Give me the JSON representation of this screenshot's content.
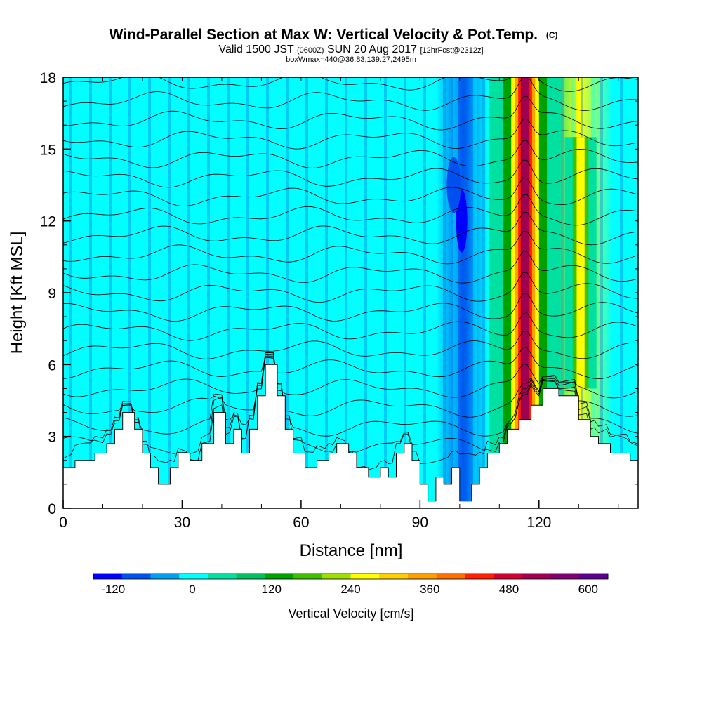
{
  "chart_data": {
    "type": "heatmap",
    "title": "Wind-Parallel Section at Max W: Vertical Velocity & Pot.Temp.",
    "title_copyright": "(C)",
    "subtitle_parts": {
      "valid": "Valid 1500 JST",
      "utc": "(0600Z)",
      "date": "SUN 20 Aug 2017",
      "forecast": "[12hrFcst@2312z]"
    },
    "subtitle2": "boxWmax=440@36.83,139.27,2495m",
    "xlabel": "Distance [nm]",
    "ylabel": "Height [Kft MSL]",
    "xlim": [
      0,
      145
    ],
    "ylim": [
      0,
      18
    ],
    "xticks": [
      "0",
      "30",
      "60",
      "90",
      "120"
    ],
    "yticks": [
      "0",
      "3",
      "6",
      "9",
      "12",
      "15",
      "18"
    ],
    "background_value": -15,
    "background_levels": [
      {
        "x_range": [
          0,
          12
        ],
        "value": -10
      },
      {
        "x_range": [
          12,
          23
        ],
        "value": 10
      },
      {
        "x_range": [
          23,
          33
        ],
        "value": -8
      },
      {
        "x_range": [
          33,
          42
        ],
        "value": 15
      },
      {
        "x_range": [
          42,
          50
        ],
        "value": 20
      },
      {
        "x_range": [
          50,
          58
        ],
        "value": 5
      },
      {
        "x_range": [
          58,
          68
        ],
        "value": -10
      },
      {
        "x_range": [
          68,
          78
        ],
        "value": 12
      },
      {
        "x_range": [
          78,
          90
        ],
        "value": 15
      },
      {
        "x_range": [
          90,
          98
        ],
        "value": -5
      },
      {
        "x_range": [
          98,
          104
        ],
        "value": -90
      },
      {
        "x_range": [
          104,
          110
        ],
        "value": -10
      },
      {
        "x_range": [
          110,
          114
        ],
        "value": 60
      },
      {
        "x_range": [
          114,
          119
        ],
        "value": 480
      },
      {
        "x_range": [
          119,
          128
        ],
        "value": 30
      },
      {
        "x_range": [
          128,
          132
        ],
        "value": 250
      },
      {
        "x_range": [
          132,
          145
        ],
        "value": -15
      }
    ],
    "terrain_kft": [
      [
        0,
        1.7
      ],
      [
        3,
        1.7
      ],
      [
        3,
        2.0
      ],
      [
        8,
        2.0
      ],
      [
        8,
        2.3
      ],
      [
        11,
        2.3
      ],
      [
        11,
        2.7
      ],
      [
        13,
        2.7
      ],
      [
        13,
        3.3
      ],
      [
        15,
        3.3
      ],
      [
        15,
        4.0
      ],
      [
        18,
        4.0
      ],
      [
        18,
        3.3
      ],
      [
        20,
        3.3
      ],
      [
        20,
        2.3
      ],
      [
        22,
        2.3
      ],
      [
        22,
        1.7
      ],
      [
        24,
        1.7
      ],
      [
        24,
        1.0
      ],
      [
        27,
        1.0
      ],
      [
        27,
        1.7
      ],
      [
        29,
        1.7
      ],
      [
        29,
        2.3
      ],
      [
        32,
        2.3
      ],
      [
        32,
        2.0
      ],
      [
        35,
        2.0
      ],
      [
        35,
        2.7
      ],
      [
        38,
        2.7
      ],
      [
        38,
        4.0
      ],
      [
        41,
        4.0
      ],
      [
        41,
        2.7
      ],
      [
        43,
        2.7
      ],
      [
        43,
        3.3
      ],
      [
        45,
        3.3
      ],
      [
        45,
        2.3
      ],
      [
        47,
        2.3
      ],
      [
        47,
        3.3
      ],
      [
        49,
        3.3
      ],
      [
        49,
        4.7
      ],
      [
        51,
        4.7
      ],
      [
        51,
        6.0
      ],
      [
        54,
        6.0
      ],
      [
        54,
        4.7
      ],
      [
        56,
        4.7
      ],
      [
        56,
        3.3
      ],
      [
        58,
        3.3
      ],
      [
        58,
        2.3
      ],
      [
        61,
        2.3
      ],
      [
        61,
        1.7
      ],
      [
        64,
        1.7
      ],
      [
        64,
        2.0
      ],
      [
        67,
        2.0
      ],
      [
        67,
        2.3
      ],
      [
        69,
        2.3
      ],
      [
        69,
        2.7
      ],
      [
        72,
        2.7
      ],
      [
        72,
        2.3
      ],
      [
        74,
        2.3
      ],
      [
        74,
        1.7
      ],
      [
        77,
        1.7
      ],
      [
        77,
        1.3
      ],
      [
        80,
        1.3
      ],
      [
        80,
        1.7
      ],
      [
        82,
        1.7
      ],
      [
        82,
        1.3
      ],
      [
        84,
        1.3
      ],
      [
        84,
        2.3
      ],
      [
        86,
        2.3
      ],
      [
        86,
        2.7
      ],
      [
        88,
        2.7
      ],
      [
        88,
        2.0
      ],
      [
        90,
        2.0
      ],
      [
        90,
        1.0
      ],
      [
        92,
        1.0
      ],
      [
        92,
        0.3
      ],
      [
        94,
        0.3
      ],
      [
        94,
        1.3
      ],
      [
        96,
        1.3
      ],
      [
        96,
        1.0
      ],
      [
        98,
        1.0
      ],
      [
        98,
        1.7
      ],
      [
        100,
        1.7
      ],
      [
        100,
        0.3
      ],
      [
        103,
        0.3
      ],
      [
        103,
        1.0
      ],
      [
        105,
        1.0
      ],
      [
        105,
        1.7
      ],
      [
        107,
        1.7
      ],
      [
        107,
        2.3
      ],
      [
        110,
        2.3
      ],
      [
        110,
        2.7
      ],
      [
        112,
        2.7
      ],
      [
        112,
        3.3
      ],
      [
        115,
        3.3
      ],
      [
        115,
        3.7
      ],
      [
        118,
        3.7
      ],
      [
        118,
        4.3
      ],
      [
        121,
        4.3
      ],
      [
        121,
        5.0
      ],
      [
        125,
        5.0
      ],
      [
        125,
        4.7
      ],
      [
        130,
        4.7
      ],
      [
        130,
        3.7
      ],
      [
        133,
        3.7
      ],
      [
        133,
        3.0
      ],
      [
        135,
        3.0
      ],
      [
        135,
        2.7
      ],
      [
        138,
        2.7
      ],
      [
        138,
        2.3
      ],
      [
        143,
        2.3
      ],
      [
        143,
        2.0
      ],
      [
        145,
        2.0
      ]
    ],
    "theta_contour_heights_kft": [
      1.9,
      2.6,
      3.4,
      4.2,
      5.0,
      5.8,
      6.6,
      7.4,
      8.2,
      9.0,
      9.8,
      10.6,
      11.4,
      12.2,
      13.0,
      13.8,
      14.6,
      15.4,
      16.2,
      17.0,
      17.8
    ],
    "colorbar": {
      "label": "Vertical Velocity [cm/s]",
      "tick_labels": [
        "-120",
        "0",
        "120",
        "240",
        "360",
        "480",
        "600"
      ],
      "tick_values": [
        -120,
        0,
        120,
        240,
        360,
        480,
        600
      ],
      "range": [
        -150,
        630
      ],
      "colors": [
        "#0000ff",
        "#0050f0",
        "#00a0f0",
        "#00ffff",
        "#00e0a0",
        "#00c060",
        "#00a000",
        "#40c000",
        "#a0e000",
        "#ffff00",
        "#ffd000",
        "#ffa000",
        "#ff7000",
        "#ff2000",
        "#d00030",
        "#a00050",
        "#800070",
        "#5a0090"
      ]
    }
  }
}
